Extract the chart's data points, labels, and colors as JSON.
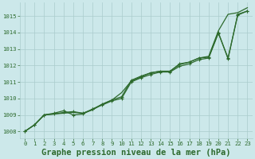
{
  "title": "Graphe pression niveau de la mer (hPa)",
  "bg_color": "#cce8ea",
  "grid_color": "#aacccc",
  "line_color": "#2d6a2d",
  "xlim_min": -0.5,
  "xlim_max": 23.5,
  "ylim_min": 1007.6,
  "ylim_max": 1015.8,
  "yticks": [
    1008,
    1009,
    1010,
    1011,
    1012,
    1013,
    1014,
    1015
  ],
  "xticks": [
    0,
    1,
    2,
    3,
    4,
    5,
    6,
    7,
    8,
    9,
    10,
    11,
    12,
    13,
    14,
    15,
    16,
    17,
    18,
    19,
    20,
    21,
    22,
    23
  ],
  "series_smooth_x": [
    0,
    1,
    2,
    3,
    4,
    5,
    6,
    7,
    8,
    9,
    10,
    11,
    12,
    13,
    14,
    15,
    16,
    17,
    18,
    19,
    20,
    21,
    22,
    23
  ],
  "series_smooth_y": [
    1008.0,
    1008.4,
    1009.0,
    1009.05,
    1009.1,
    1009.15,
    1009.1,
    1009.3,
    1009.65,
    1009.9,
    1010.35,
    1011.05,
    1011.3,
    1011.55,
    1011.65,
    1011.65,
    1012.05,
    1012.2,
    1012.45,
    1012.55,
    1014.1,
    1015.1,
    1015.2,
    1015.5
  ],
  "series_marked1_x": [
    0,
    1,
    2,
    3,
    4,
    5,
    6,
    7,
    8,
    9,
    10,
    11,
    12,
    13,
    14,
    15,
    16,
    17,
    18,
    19,
    20,
    21,
    22,
    23
  ],
  "series_marked1_y": [
    1008.0,
    1008.4,
    1009.0,
    1009.1,
    1009.25,
    1009.0,
    1009.05,
    1009.35,
    1009.6,
    1009.85,
    1010.0,
    1011.0,
    1011.25,
    1011.45,
    1011.6,
    1011.6,
    1011.95,
    1012.1,
    1012.35,
    1012.45,
    1013.95,
    1012.45,
    1015.05,
    1015.3
  ],
  "series_marked2_x": [
    0,
    1,
    2,
    3,
    4,
    5,
    6,
    7,
    8,
    9,
    10,
    11,
    12,
    13,
    14,
    15,
    16,
    17,
    18,
    19,
    20,
    21,
    22,
    23
  ],
  "series_marked2_y": [
    1008.0,
    1008.4,
    1009.0,
    1009.05,
    1009.15,
    1009.2,
    1009.1,
    1009.35,
    1009.65,
    1009.9,
    1010.1,
    1011.1,
    1011.35,
    1011.55,
    1011.65,
    1011.65,
    1012.1,
    1012.2,
    1012.45,
    1012.5,
    1014.0,
    1012.4,
    1015.1,
    1015.3
  ],
  "title_fontsize": 7.5,
  "tick_fontsize": 5.2,
  "font_color": "#2d6a2d"
}
